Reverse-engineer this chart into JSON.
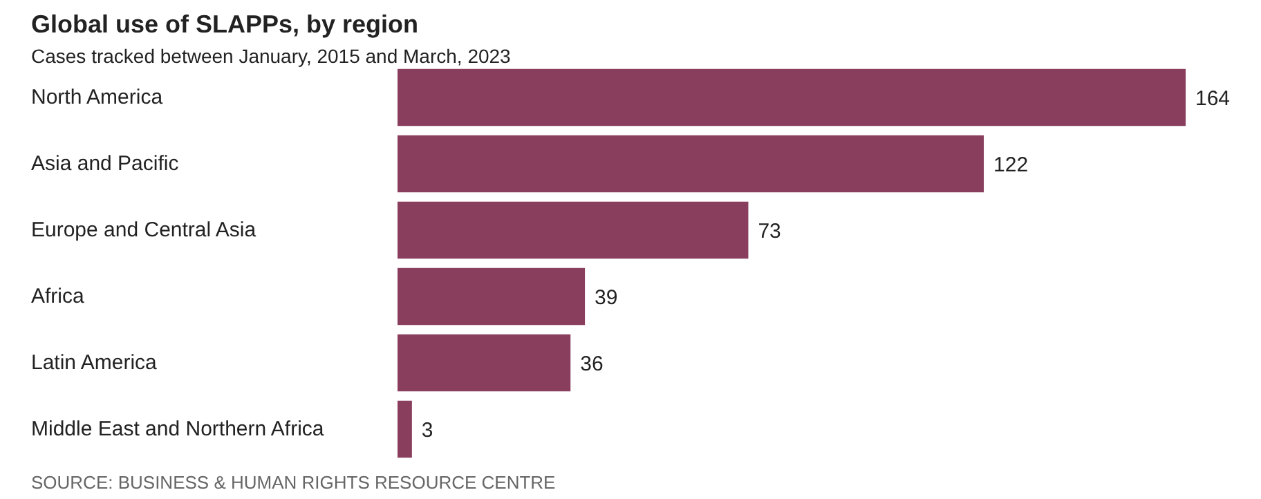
{
  "chart_data": {
    "type": "bar",
    "orientation": "horizontal",
    "title": "Global use of SLAPPs, by region",
    "subtitle": "Cases tracked between January, 2015 and March, 2023",
    "categories": [
      "North America",
      "Asia and Pacific",
      "Europe and Central Asia",
      "Africa",
      "Latin America",
      "Middle East and Northern Africa"
    ],
    "values": [
      164,
      122,
      73,
      39,
      36,
      3
    ],
    "color": "#8a3e5e",
    "data_labels": true,
    "annotations": [
      "SOURCE: BUSINESS & HUMAN RIGHTS RESOURCE CENTRE"
    ]
  }
}
